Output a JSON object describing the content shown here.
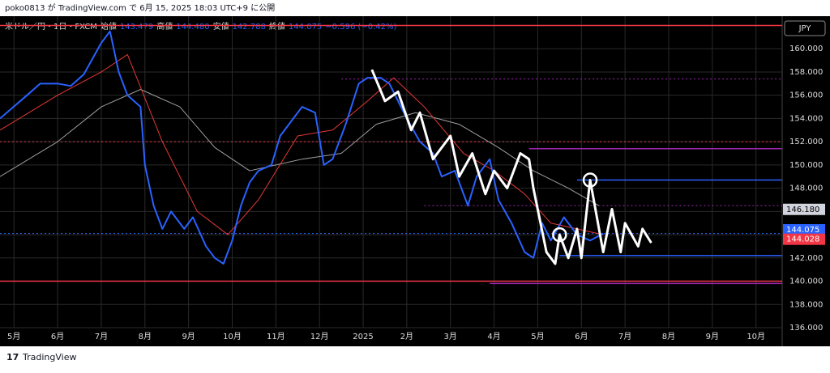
{
  "header": "poko0813 が TradingView.com で 6月 15, 2025 18:03 UTC+9 に公開",
  "footer": "TradingView",
  "chart_data": {
    "type": "line",
    "title": "米ドル／円・1日・FXCM",
    "ohlc": [
      {
        "label": "始値",
        "value": "143.479"
      },
      {
        "label": "高値",
        "value": "144.480"
      },
      {
        "label": "安値",
        "value": "142.788"
      },
      {
        "label": "終値",
        "value": "144.075"
      }
    ],
    "change": "−0.596 (−0.42%)",
    "currency": "JPY",
    "xlim": [
      -0.32,
      17.6
    ],
    "xticks": [
      {
        "value": 0,
        "label": "5月"
      },
      {
        "value": 1,
        "label": "6月"
      },
      {
        "value": 2,
        "label": "7月"
      },
      {
        "value": 3,
        "label": "8月"
      },
      {
        "value": 4,
        "label": "9月"
      },
      {
        "value": 5,
        "label": "10月"
      },
      {
        "value": 6,
        "label": "11月"
      },
      {
        "value": 7,
        "label": "12月"
      },
      {
        "value": 8,
        "label": "2025"
      },
      {
        "value": 9,
        "label": "2月"
      },
      {
        "value": 10,
        "label": "3月"
      },
      {
        "value": 11,
        "label": "4月"
      },
      {
        "value": 12,
        "label": "5月"
      },
      {
        "value": 13,
        "label": "6月"
      },
      {
        "value": 14,
        "label": "7月"
      },
      {
        "value": 15,
        "label": "8月"
      },
      {
        "value": 16,
        "label": "9月"
      },
      {
        "value": 17,
        "label": "10月"
      }
    ],
    "ylim": [
      136,
      162.8
    ],
    "yticks": [
      {
        "value": 136,
        "label": "136.000"
      },
      {
        "value": 138,
        "label": "138.000"
      },
      {
        "value": 140,
        "label": "140.000"
      },
      {
        "value": 142,
        "label": "142.000"
      },
      {
        "value": 144,
        "label": "144.000"
      },
      {
        "value": 146,
        "label": "146.000"
      },
      {
        "value": 148,
        "label": "148.000"
      },
      {
        "value": 150,
        "label": "150.000"
      },
      {
        "value": 152,
        "label": "152.000"
      },
      {
        "value": 154,
        "label": "154.000"
      },
      {
        "value": 156,
        "label": "156.000"
      },
      {
        "value": 158,
        "label": "158.000"
      },
      {
        "value": 160,
        "label": "160.000"
      }
    ],
    "grid": true,
    "levels": [
      {
        "value": 162.0,
        "color": "#f23645",
        "dash": false,
        "x": -0.32
      },
      {
        "value": 140.0,
        "color": "#f23645",
        "dash": false,
        "x": -0.32
      },
      {
        "value": 152.0,
        "color": "#f23645",
        "dash": true,
        "x": -0.32
      },
      {
        "value": 157.4,
        "color": "#9c27b0",
        "dash": true,
        "x": 7.5
      },
      {
        "value": 151.4,
        "color": "#9c27b0",
        "dash": false,
        "x": 11.8
      },
      {
        "value": 148.7,
        "color": "#2962ff",
        "dash": false,
        "x": 12.9
      },
      {
        "value": 146.5,
        "color": "#9c27b0",
        "dash": true,
        "x": 9.4
      },
      {
        "value": 144.1,
        "color": "#2962ff",
        "dash": true,
        "x": -0.32
      },
      {
        "value": 142.2,
        "color": "#2962ff",
        "dash": false,
        "x": 12.5
      },
      {
        "value": 139.8,
        "color": "#9c27b0",
        "dash": false,
        "x": 10.9
      }
    ],
    "price_labels": [
      {
        "value": 146.18,
        "label": "146.180",
        "color": "#d1d4dc"
      },
      {
        "value": 144.075,
        "label": "144.075",
        "color": "#2962ff"
      },
      {
        "value": 144.028,
        "label": "144.028",
        "color": "#f23645"
      }
    ],
    "series": [
      {
        "name": "ma-slow",
        "color": "#9e9e9e",
        "width": 1,
        "x": [
          -0.32,
          1,
          2,
          2.9,
          3.8,
          4.6,
          5.4,
          6.0,
          6.6,
          7.5,
          8.3,
          9.2,
          10.2,
          11.1,
          11.9,
          12.7,
          13.4
        ],
        "values": [
          149,
          152,
          155,
          156.5,
          155,
          151.5,
          149.5,
          150,
          150.5,
          151,
          153.5,
          154.5,
          153.5,
          151.5,
          149.5,
          148,
          146.5
        ]
      },
      {
        "name": "ma-fast",
        "color": "#e53935",
        "width": 1,
        "x": [
          -0.32,
          1,
          2,
          2.6,
          3.4,
          4.2,
          4.9,
          5.6,
          6.5,
          7.3,
          8.1,
          8.7,
          9.4,
          10.3,
          11.0,
          11.7,
          12.3,
          12.9,
          13.5
        ],
        "values": [
          153,
          156,
          158,
          159.5,
          152,
          146,
          144,
          147,
          152.5,
          153,
          155.5,
          157.5,
          155,
          151,
          149.5,
          147.5,
          145,
          144.5,
          144
        ]
      },
      {
        "name": "price",
        "color": "#2962ff",
        "width": 2,
        "x": [
          -0.32,
          0.3,
          0.6,
          1.0,
          1.3,
          1.6,
          2.0,
          2.2,
          2.4,
          2.6,
          2.9,
          3.0,
          3.2,
          3.4,
          3.6,
          3.9,
          4.1,
          4.4,
          4.6,
          4.8,
          5.0,
          5.2,
          5.4,
          5.6,
          5.9,
          6.1,
          6.3,
          6.6,
          6.9,
          7.1,
          7.3,
          7.6,
          7.9,
          8.1,
          8.4,
          8.6,
          8.8,
          9.0,
          9.3,
          9.6,
          9.8,
          10.1,
          10.4,
          10.6,
          10.9,
          11.1,
          11.4,
          11.7,
          11.9,
          12.1,
          12.3,
          12.6,
          12.9,
          13.2,
          13.5
        ],
        "values": [
          154,
          156,
          157,
          157,
          156.8,
          157.8,
          160.5,
          161.5,
          158,
          156,
          155,
          150,
          146.5,
          144.5,
          146,
          144.5,
          145.5,
          143,
          142,
          141.5,
          143.5,
          146.5,
          148.5,
          149.5,
          150,
          152.5,
          153.5,
          155,
          154.5,
          150,
          150.5,
          153.5,
          157,
          157.5,
          157.5,
          157,
          155.5,
          154,
          152,
          151,
          149,
          149.5,
          146.5,
          149,
          150.5,
          147,
          145,
          142.5,
          142,
          145,
          143.5,
          145.5,
          144,
          143.5,
          144.1
        ]
      },
      {
        "name": "zigzag",
        "color": "#ffffff",
        "width": 3,
        "x": [
          8.2,
          8.5,
          8.8,
          9.1,
          9.3,
          9.6,
          10.0,
          10.2,
          10.5,
          10.8,
          11.0,
          11.3,
          11.6,
          11.8,
          11.9,
          12.2,
          12.4,
          12.5,
          12.7,
          12.9,
          13.0,
          13.2,
          13.5,
          13.7,
          13.9,
          14.0,
          14.3,
          14.4,
          14.6
        ],
        "values": [
          158.2,
          155.5,
          156.3,
          153,
          154.5,
          150.5,
          152.5,
          149,
          151,
          147.5,
          149.5,
          148,
          151,
          150.5,
          148,
          142.5,
          141.5,
          144,
          142,
          144.5,
          142,
          148.7,
          142.5,
          146.2,
          142.5,
          145,
          143,
          144.5,
          143.3
        ]
      }
    ]
  }
}
